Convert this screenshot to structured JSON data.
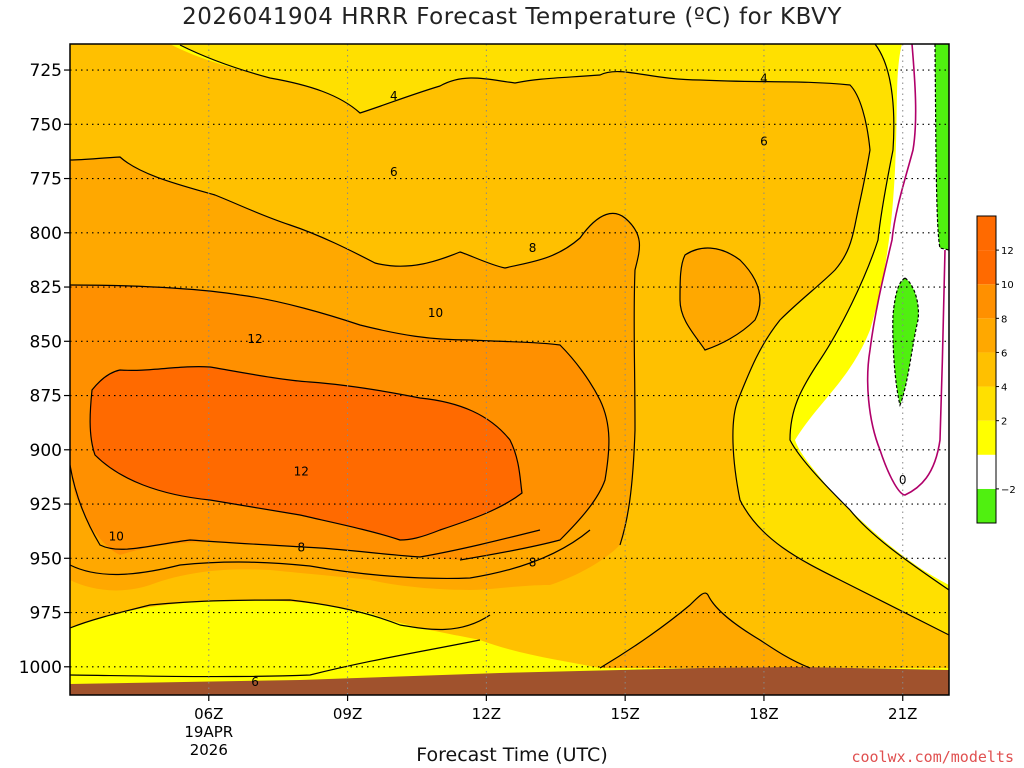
{
  "title": "2026041904 HRRR Forecast Temperature (ºC) for KBVY",
  "credit": "coolwx.com/modelts",
  "chart_data": {
    "type": "contour",
    "title": "2026041904 HRRR Forecast Temperature (ºC) for KBVY",
    "xlabel": "Forecast Time (UTC)",
    "ylabel": "",
    "x_axis": {
      "range_hours_utc": [
        3,
        22
      ],
      "ticks": [
        {
          "hour": 6,
          "label": "06Z",
          "sub1": "19APR",
          "sub2": "2026"
        },
        {
          "hour": 9,
          "label": "09Z",
          "sub1": "",
          "sub2": ""
        },
        {
          "hour": 12,
          "label": "12Z",
          "sub1": "",
          "sub2": ""
        },
        {
          "hour": 15,
          "label": "15Z",
          "sub1": "",
          "sub2": ""
        },
        {
          "hour": 18,
          "label": "18Z",
          "sub1": "",
          "sub2": ""
        },
        {
          "hour": 21,
          "label": "21Z",
          "sub1": "",
          "sub2": ""
        }
      ]
    },
    "y_axis": {
      "units": "hPa",
      "range": [
        713,
        1013
      ],
      "inverted": true,
      "ticks": [
        725,
        750,
        775,
        800,
        825,
        850,
        875,
        900,
        925,
        950,
        975,
        1000
      ]
    },
    "grid": true,
    "colorbar": {
      "position": "right",
      "levels": [
        -4,
        -2,
        0,
        2,
        4,
        6,
        8,
        10,
        12,
        14
      ],
      "labels": [
        "−2",
        "2",
        "4",
        "6",
        "8",
        "10",
        "12"
      ],
      "label_values": [
        -2,
        2,
        4,
        6,
        8,
        10,
        12
      ],
      "colors": [
        "#50f010",
        "#ffffff",
        "#ffff00",
        "#ffe000",
        "#ffc000",
        "#ffa800",
        "#ff9000",
        "#ff6a00",
        "#ff6a00"
      ]
    },
    "fill_colors": {
      "t12": "#ff6a00",
      "t10": "#ff9000",
      "t8": "#ffa800",
      "t6": "#ffc000",
      "t4": "#ffe000",
      "t2": "#ffff00",
      "t0": "#ffffff",
      "tneg": "#50f010",
      "ground": "#a0522d",
      "zero_line": "#b0006a"
    },
    "contour_labels": [
      {
        "value": "4",
        "hour": 10.0,
        "p": 737
      },
      {
        "value": "4",
        "hour": 18.0,
        "p": 729
      },
      {
        "value": "6",
        "hour": 10.0,
        "p": 772
      },
      {
        "value": "6",
        "hour": 18.0,
        "p": 758
      },
      {
        "value": "8",
        "hour": 13.0,
        "p": 807
      },
      {
        "value": "10",
        "hour": 10.9,
        "p": 837
      },
      {
        "value": "12",
        "hour": 7.0,
        "p": 849
      },
      {
        "value": "12",
        "hour": 8.0,
        "p": 910
      },
      {
        "value": "10",
        "hour": 4.0,
        "p": 940
      },
      {
        "value": "8",
        "hour": 8.0,
        "p": 945
      },
      {
        "value": "8",
        "hour": 13.0,
        "p": 952
      },
      {
        "value": "6",
        "hour": 7.0,
        "p": 1007
      },
      {
        "value": "0",
        "hour": 21.0,
        "p": 914
      }
    ]
  }
}
